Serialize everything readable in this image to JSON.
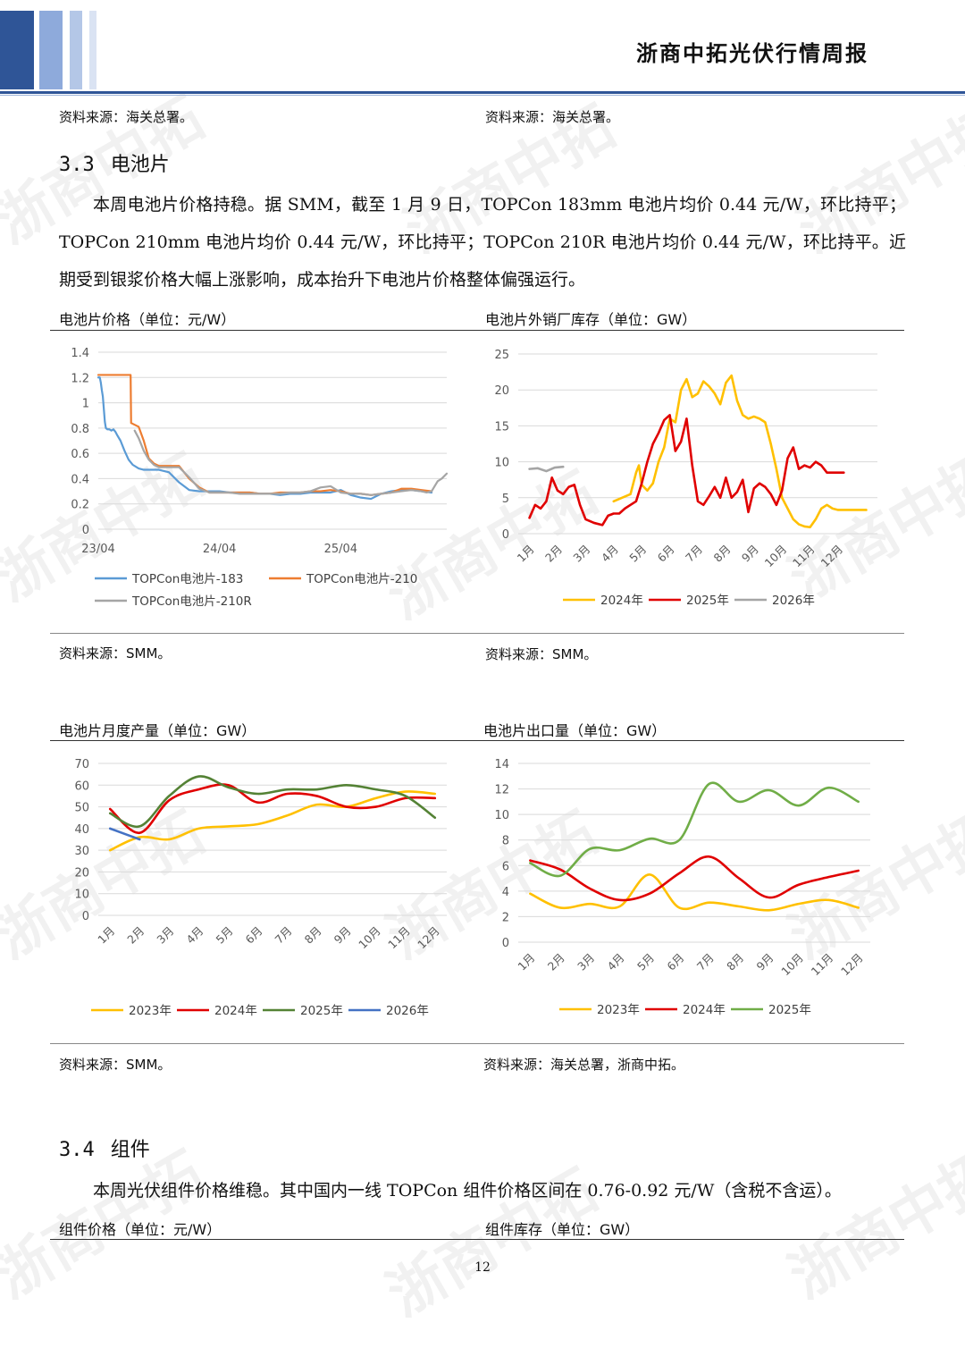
{
  "header": {
    "title": "浙商中拓光伏行情周报"
  },
  "watermark": "浙商中拓",
  "top_sources": {
    "left": "资料来源：海关总署。",
    "right": "资料来源：海关总署。"
  },
  "section_33": {
    "num": "3.3",
    "title": "电池片",
    "para": "本周电池片价格持稳。据 SMM，截至 1 月 9 日，TOPCon 183mm 电池片均价 0.44 元/W，环比持平；TOPCon 210mm 电池片均价 0.44 元/W，环比持平；TOPCon 210R 电池片均价 0.44 元/W，环比持平。近期受到银浆价格大幅上涨影响，成本抬升下电池片价格整体偏强运行。"
  },
  "section_34": {
    "num": "3.4",
    "title": "组件",
    "para": "本周光伏组件价格维稳。其中国内一线 TOPCon 组件价格区间在 0.76-0.92 元/W（含税不含运）。"
  },
  "bottom_titles": {
    "left": "组件价格（单位：元/W）",
    "right": "组件库存（单位：GW）"
  },
  "page_number": "12",
  "chart_data": [
    {
      "id": "c1",
      "type": "line",
      "title": "电池片价格（单位：元/W）",
      "source": "资料来源：SMM。",
      "x_ticks": [
        "23/04",
        "24/04",
        "25/04"
      ],
      "y_ticks": [
        "0",
        "0.2",
        "0.4",
        "0.6",
        "0.8",
        "1",
        "1.2",
        "1.4"
      ],
      "ylim": [
        0,
        1.4
      ],
      "series": [
        {
          "name": "TOPCon电池片-183",
          "color": "#5b9bd5",
          "x": [
            0,
            0.15,
            0.25,
            0.35,
            0.45,
            0.5,
            0.55,
            0.65,
            0.75,
            0.9,
            1.1,
            1.3,
            1.5,
            1.7,
            1.9,
            2.2,
            2.6,
            3.0,
            3.4,
            4.0,
            4.5,
            5.0,
            5.5,
            6.0,
            7.0,
            8.0,
            9.0,
            10,
            11,
            12,
            13,
            14,
            15,
            16,
            17,
            18,
            19,
            20,
            21,
            22,
            23,
            24,
            25,
            26,
            27,
            28,
            29,
            30,
            31,
            32,
            33
          ],
          "y": [
            1.2,
            1.2,
            1.16,
            1.1,
            1.05,
            1.0,
            0.95,
            0.85,
            0.8,
            0.79,
            0.79,
            0.78,
            0.79,
            0.77,
            0.74,
            0.7,
            0.62,
            0.55,
            0.51,
            0.48,
            0.47,
            0.47,
            0.47,
            0.47,
            0.45,
            0.37,
            0.31,
            0.3,
            0.3,
            0.3,
            0.29,
            0.29,
            0.29,
            0.28,
            0.28,
            0.27,
            0.28,
            0.28,
            0.29,
            0.29,
            0.29,
            0.31,
            0.27,
            0.25,
            0.24,
            0.28,
            0.3,
            0.31,
            0.31,
            0.3,
            0.29
          ]
        },
        {
          "name": "TOPCon电池片-210",
          "color": "#ed7d31",
          "x": [
            0,
            3.2,
            3.25,
            4.0,
            4.5,
            5.0,
            5.5,
            6.0,
            7.0,
            8.0,
            9.0,
            10,
            11,
            12,
            13,
            14,
            15,
            16,
            17,
            18,
            19,
            20,
            21,
            22,
            23,
            24,
            25,
            26,
            27,
            28,
            29,
            30,
            31,
            32,
            33
          ],
          "y": [
            1.22,
            1.22,
            0.84,
            0.81,
            0.7,
            0.56,
            0.52,
            0.5,
            0.5,
            0.5,
            0.4,
            0.33,
            0.29,
            0.29,
            0.29,
            0.29,
            0.29,
            0.28,
            0.28,
            0.29,
            0.29,
            0.29,
            0.3,
            0.3,
            0.31,
            0.3,
            0.28,
            0.28,
            0.27,
            0.28,
            0.29,
            0.32,
            0.32,
            0.31,
            0.3
          ]
        },
        {
          "name": "TOPCon电池片-210R",
          "color": "#a5a5a5",
          "x": [
            3.6,
            4.0,
            4.5,
            5.0,
            5.5,
            6.0,
            7.0,
            8.0,
            9.0,
            10,
            11,
            12,
            13,
            14,
            15,
            16,
            17,
            18,
            19,
            20,
            21,
            22,
            23,
            24,
            25,
            26,
            27,
            28,
            29,
            30,
            31,
            32,
            32.5,
            33,
            33.6,
            34,
            34.5
          ],
          "y": [
            0.78,
            0.72,
            0.62,
            0.55,
            0.51,
            0.49,
            0.49,
            0.49,
            0.41,
            0.32,
            0.29,
            0.29,
            0.29,
            0.28,
            0.28,
            0.28,
            0.28,
            0.28,
            0.29,
            0.29,
            0.3,
            0.33,
            0.34,
            0.29,
            0.28,
            0.28,
            0.27,
            0.28,
            0.29,
            0.3,
            0.31,
            0.3,
            0.29,
            0.3,
            0.38,
            0.4,
            0.44
          ]
        }
      ]
    },
    {
      "id": "c2",
      "type": "line",
      "title": "电池片外销厂库存（单位：GW）",
      "source": "资料来源：SMM。",
      "x_ticks": [
        "1月",
        "2月",
        "3月",
        "4月",
        "5月",
        "6月",
        "7月",
        "8月",
        "9月",
        "10月",
        "11月",
        "12月"
      ],
      "y_ticks": [
        "0",
        "5",
        "10",
        "15",
        "20",
        "25"
      ],
      "ylim": [
        0,
        25
      ],
      "series": [
        {
          "name": "2024年",
          "color": "#ffc000",
          "x": [
            3.0,
            3.3,
            3.6,
            3.8,
            3.9,
            4.0,
            4.2,
            4.4,
            4.6,
            4.8,
            5.0,
            5.2,
            5.4,
            5.6,
            5.8,
            6.0,
            6.2,
            6.4,
            6.6,
            6.8,
            7.0,
            7.2,
            7.4,
            7.6,
            7.8,
            8.0,
            8.2,
            8.4,
            8.6,
            8.8,
            9.0,
            9.2,
            9.4,
            9.6,
            9.8,
            10.0,
            10.2,
            10.4,
            10.6,
            10.8,
            11.0,
            11.2,
            11.4,
            11.6,
            11.8,
            12.0
          ],
          "y": [
            4.5,
            5.0,
            5.5,
            8.5,
            9.5,
            6.8,
            6.0,
            7.0,
            10.0,
            12.0,
            16.0,
            15.5,
            20.0,
            21.5,
            19.0,
            19.5,
            21.2,
            20.5,
            19.5,
            18.0,
            21.0,
            22.0,
            18.5,
            16.5,
            16.0,
            16.3,
            16.0,
            15.5,
            12.5,
            9.0,
            5.0,
            3.5,
            2.0,
            1.3,
            1.0,
            0.9,
            2.0,
            3.5,
            4.0,
            3.5,
            3.3,
            3.3,
            3.3,
            3.3,
            3.3,
            3.3
          ]
        },
        {
          "name": "2025年",
          "color": "#e00000",
          "x": [
            0,
            0.2,
            0.4,
            0.6,
            0.8,
            1.0,
            1.2,
            1.4,
            1.6,
            1.8,
            2.0,
            2.3,
            2.6,
            2.8,
            3.0,
            3.2,
            3.4,
            3.6,
            3.8,
            4.0,
            4.2,
            4.4,
            4.6,
            4.8,
            5.0,
            5.2,
            5.4,
            5.6,
            5.8,
            6.0,
            6.2,
            6.4,
            6.6,
            6.8,
            7.0,
            7.2,
            7.4,
            7.6,
            7.8,
            8.0,
            8.2,
            8.4,
            8.6,
            8.8,
            9.0,
            9.2,
            9.4,
            9.6,
            9.8,
            10.0,
            10.2,
            10.4,
            10.6,
            10.8,
            11.0,
            11.2
          ],
          "y": [
            2.2,
            4.0,
            3.5,
            4.5,
            7.8,
            6.0,
            5.5,
            6.5,
            6.8,
            4.0,
            2.0,
            1.5,
            1.2,
            2.5,
            2.8,
            2.8,
            3.5,
            4.0,
            4.5,
            7.0,
            10.0,
            12.5,
            14.0,
            15.8,
            16.5,
            11.5,
            12.8,
            16.0,
            9.5,
            4.5,
            4.0,
            5.2,
            6.5,
            5.0,
            7.8,
            5.0,
            5.8,
            7.5,
            3.0,
            6.3,
            7.0,
            6.5,
            5.5,
            4.0,
            6.0,
            10.5,
            12.0,
            9.0,
            9.5,
            9.2,
            10.0,
            9.5,
            8.5,
            8.5,
            8.5,
            8.5
          ]
        },
        {
          "name": "2026年",
          "color": "#a5a5a5",
          "x": [
            0,
            0.3,
            0.6,
            0.9,
            1.2
          ],
          "y": [
            9.0,
            9.1,
            8.7,
            9.2,
            9.3
          ]
        }
      ]
    },
    {
      "id": "c3",
      "type": "line",
      "title": "电池片月度产量（单位：GW）",
      "source": "资料来源：SMM。",
      "x_ticks": [
        "1月",
        "2月",
        "3月",
        "4月",
        "5月",
        "6月",
        "7月",
        "8月",
        "9月",
        "10月",
        "11月",
        "12月"
      ],
      "y_ticks": [
        "0",
        "10",
        "20",
        "30",
        "40",
        "50",
        "60",
        "70"
      ],
      "ylim": [
        0,
        70
      ],
      "series": [
        {
          "name": "2023年",
          "color": "#ffc000",
          "x": [
            0,
            1,
            2,
            3,
            4,
            5,
            6,
            7,
            8,
            9,
            10,
            11
          ],
          "y": [
            30,
            36,
            35,
            40,
            41,
            42,
            46,
            51,
            50,
            54,
            57,
            56
          ]
        },
        {
          "name": "2024年",
          "color": "#e00000",
          "x": [
            0,
            1,
            2,
            3,
            4,
            5,
            6,
            7,
            8,
            9,
            10,
            11
          ],
          "y": [
            49,
            38,
            53,
            58,
            60,
            52,
            56,
            55,
            50,
            50,
            54,
            54
          ]
        },
        {
          "name": "2025年",
          "color": "#548235",
          "x": [
            0,
            1,
            2,
            3,
            4,
            5,
            6,
            7,
            8,
            9,
            10,
            11
          ],
          "y": [
            47,
            41,
            55,
            64,
            59,
            56,
            58,
            58,
            60,
            58,
            55,
            45
          ]
        },
        {
          "name": "2026年",
          "color": "#4472c4",
          "x": [
            0,
            1
          ],
          "y": [
            40,
            35
          ]
        }
      ]
    },
    {
      "id": "c4",
      "type": "line",
      "title": "电池片出口量（单位：GW）",
      "source": "资料来源：海关总署，浙商中拓。",
      "x_ticks": [
        "1月",
        "2月",
        "3月",
        "4月",
        "5月",
        "6月",
        "7月",
        "8月",
        "9月",
        "10月",
        "11月",
        "12月"
      ],
      "y_ticks": [
        "0",
        "2",
        "4",
        "6",
        "8",
        "10",
        "12",
        "14"
      ],
      "ylim": [
        0,
        14
      ],
      "series": [
        {
          "name": "2023年",
          "color": "#ffc000",
          "x": [
            0,
            1,
            2,
            3,
            4,
            5,
            6,
            7,
            8,
            9,
            10,
            11
          ],
          "y": [
            3.8,
            2.7,
            3.0,
            2.8,
            5.3,
            2.7,
            3.1,
            2.8,
            2.5,
            3.0,
            3.3,
            2.7
          ]
        },
        {
          "name": "2024年",
          "color": "#e00000",
          "x": [
            0,
            1,
            2,
            3,
            4,
            5,
            6,
            7,
            8,
            9,
            10,
            11
          ],
          "y": [
            6.4,
            5.7,
            4.2,
            3.3,
            3.8,
            5.4,
            6.7,
            5.0,
            3.5,
            4.5,
            5.1,
            5.6
          ]
        },
        {
          "name": "2025年",
          "color": "#70ad47",
          "x": [
            0,
            1,
            2,
            3,
            4,
            5,
            6,
            7,
            8,
            9,
            10,
            11
          ],
          "y": [
            6.2,
            5.2,
            7.3,
            7.2,
            8.1,
            8.0,
            12.4,
            11.0,
            11.9,
            10.7,
            12.1,
            11.0
          ]
        }
      ]
    }
  ]
}
